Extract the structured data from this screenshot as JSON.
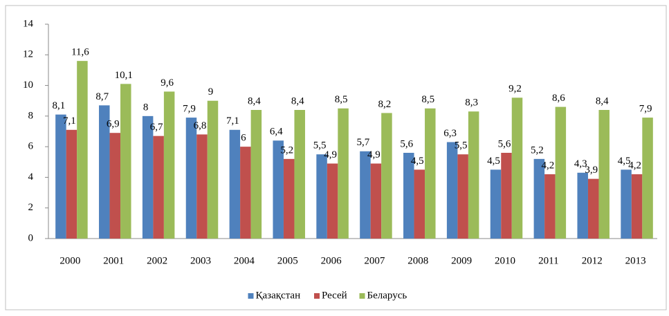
{
  "chart_data": {
    "type": "bar",
    "categories": [
      "2000",
      "2001",
      "2002",
      "2003",
      "2004",
      "2005",
      "2006",
      "2007",
      "2008",
      "2009",
      "2010",
      "2011",
      "2012",
      "2013"
    ],
    "series": [
      {
        "name": "Қазақстан",
        "color": "#4f81bd",
        "values": [
          8.1,
          8.7,
          8,
          7.9,
          7.1,
          6.4,
          5.5,
          5.7,
          5.6,
          6.3,
          4.5,
          5.2,
          4.3,
          4.5
        ],
        "value_labels": [
          "8,1",
          "8,7",
          "8",
          "7,9",
          "7,1",
          "6,4",
          "5,5",
          "5,7",
          "5,6",
          "6,3",
          "4,5",
          "5,2",
          "4,3",
          "4,5"
        ]
      },
      {
        "name": "Ресей",
        "color": "#c0504d",
        "values": [
          7.1,
          6.9,
          6.7,
          6.8,
          6,
          5.2,
          4.9,
          4.9,
          4.5,
          5.5,
          5.6,
          4.2,
          3.9,
          4.2
        ],
        "value_labels": [
          "7,1",
          "6,9",
          "6,7",
          "6,8",
          "6",
          "5,2",
          "4,9",
          "4,9",
          "4,5",
          "5,5",
          "5,6",
          "4,2",
          "3,9",
          "4,2"
        ]
      },
      {
        "name": "Беларусь",
        "color": "#9bbb59",
        "values": [
          11.6,
          10.1,
          9.6,
          9,
          8.4,
          8.4,
          8.5,
          8.2,
          8.5,
          8.3,
          9.2,
          8.6,
          8.4,
          7.9
        ],
        "value_labels": [
          "11,6",
          "10,1",
          "9,6",
          "9",
          "8,4",
          "8,4",
          "8,5",
          "8,2",
          "8,5",
          "8,3",
          "9,2",
          "8,6",
          "8,4",
          "7,9"
        ]
      }
    ],
    "ylim": [
      0,
      14
    ],
    "yticks": [
      0,
      2,
      4,
      6,
      8,
      10,
      12,
      14
    ],
    "grid": false,
    "legend": "bottom"
  }
}
